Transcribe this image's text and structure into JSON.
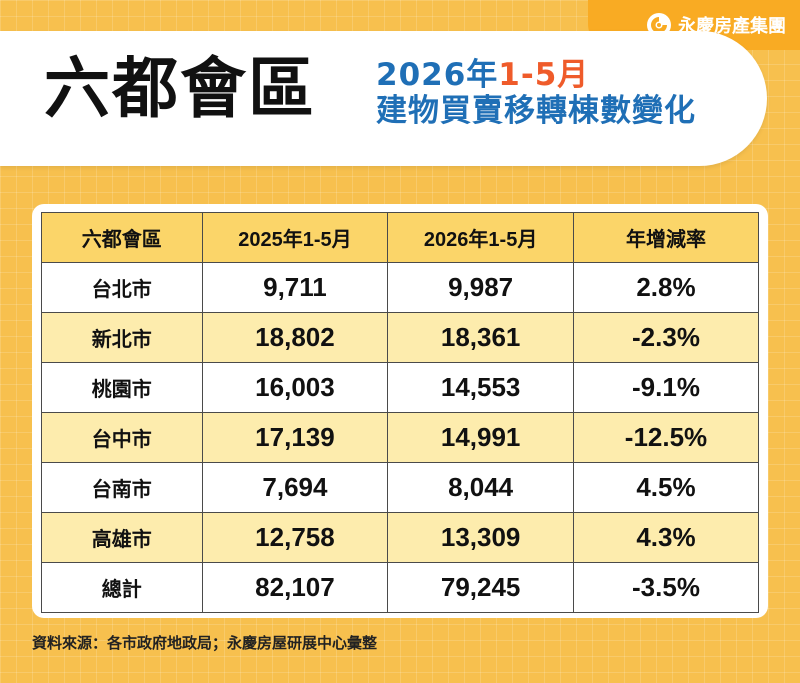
{
  "brand": {
    "name": "永慶房產集團",
    "color": "#f9ab23"
  },
  "header": {
    "title": "六都會區",
    "subtitle_year": "2026年",
    "subtitle_range": "1-5月",
    "subtitle_line2": "建物買賣移轉棟數變化"
  },
  "chart_data": {
    "type": "table",
    "columns": [
      "六都會區",
      "2025年1-5月",
      "2026年1-5月",
      "年增減率"
    ],
    "rows": [
      [
        "台北市",
        "9,711",
        "9,987",
        "2.8%"
      ],
      [
        "新北市",
        "18,802",
        "18,361",
        "-2.3%"
      ],
      [
        "桃園市",
        "16,003",
        "14,553",
        "-9.1%"
      ],
      [
        "台中市",
        "17,139",
        "14,991",
        "-12.5%"
      ],
      [
        "台南市",
        "7,694",
        "8,044",
        "4.5%"
      ],
      [
        "高雄市",
        "12,758",
        "13,309",
        "4.3%"
      ],
      [
        "總計",
        "82,107",
        "79,245",
        "-3.5%"
      ]
    ]
  },
  "footer": {
    "source": "資料來源：各市政府地政局；永慶房屋研展中心彙整"
  },
  "colors": {
    "background": "#f7c04e",
    "header_row": "#fbd569",
    "stripe": "#fdecad",
    "subtitle_blue": "#1f6fb6",
    "subtitle_orange": "#ef5b2a"
  }
}
